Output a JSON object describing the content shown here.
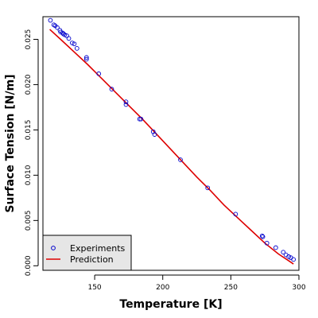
{
  "chart_data": {
    "type": "scatter",
    "title": "",
    "xlabel": "Temperature [K]",
    "ylabel": "Surface Tension [N/m]",
    "xlim": [
      112,
      300
    ],
    "ylim": [
      -0.0005,
      0.0275
    ],
    "x_ticks": [
      150,
      200,
      250,
      300
    ],
    "x_tick_labels": [
      "150",
      "200",
      "250",
      "300"
    ],
    "y_ticks": [
      0.0,
      0.005,
      0.01,
      0.015,
      0.02,
      0.025
    ],
    "y_tick_labels": [
      "0.000",
      "0.005",
      "0.010",
      "0.015",
      "0.020",
      "0.025"
    ],
    "grid": false,
    "legend_position": "bottom-left",
    "series": [
      {
        "name": "Experiments",
        "kind": "points",
        "marker": "open-circle",
        "color": "#0000cc",
        "points": [
          [
            117.5,
            0.0271
          ],
          [
            120,
            0.0266
          ],
          [
            121,
            0.0265
          ],
          [
            122.5,
            0.0263
          ],
          [
            124.5,
            0.026
          ],
          [
            125,
            0.0258
          ],
          [
            126.5,
            0.0257
          ],
          [
            127,
            0.0256
          ],
          [
            128,
            0.0255
          ],
          [
            129.5,
            0.0254
          ],
          [
            131,
            0.0251
          ],
          [
            133.5,
            0.0246
          ],
          [
            135,
            0.0245
          ],
          [
            137,
            0.024
          ],
          [
            144,
            0.023
          ],
          [
            144,
            0.0228
          ],
          [
            153,
            0.0212
          ],
          [
            162.5,
            0.0195
          ],
          [
            173,
            0.0181
          ],
          [
            173,
            0.0178
          ],
          [
            183,
            0.0162
          ],
          [
            184,
            0.0162
          ],
          [
            193,
            0.0148
          ],
          [
            194,
            0.0145
          ],
          [
            213,
            0.0117
          ],
          [
            233,
            0.0086
          ],
          [
            253.5,
            0.0057
          ],
          [
            273,
            0.0033
          ],
          [
            273.5,
            0.0032
          ],
          [
            276.5,
            0.0025
          ],
          [
            283,
            0.002
          ],
          [
            288.5,
            0.0015
          ],
          [
            290.5,
            0.0012
          ],
          [
            292.5,
            0.001
          ],
          [
            294,
            0.0009
          ],
          [
            296,
            0.0007
          ]
        ]
      },
      {
        "name": "Prediction",
        "kind": "line",
        "color": "#dd0000",
        "points": [
          [
            117,
            0.0261
          ],
          [
            125,
            0.025
          ],
          [
            135,
            0.0236
          ],
          [
            145,
            0.0222
          ],
          [
            155,
            0.0207
          ],
          [
            165,
            0.0192
          ],
          [
            175,
            0.0177
          ],
          [
            185,
            0.0162
          ],
          [
            195,
            0.0146
          ],
          [
            205,
            0.013
          ],
          [
            215,
            0.0114
          ],
          [
            225,
            0.0098
          ],
          [
            235,
            0.0083
          ],
          [
            245,
            0.0067
          ],
          [
            255,
            0.0053
          ],
          [
            265,
            0.0039
          ],
          [
            275,
            0.0025
          ],
          [
            285,
            0.0013
          ],
          [
            292,
            0.0006
          ],
          [
            296,
            0.0002
          ]
        ]
      }
    ]
  }
}
